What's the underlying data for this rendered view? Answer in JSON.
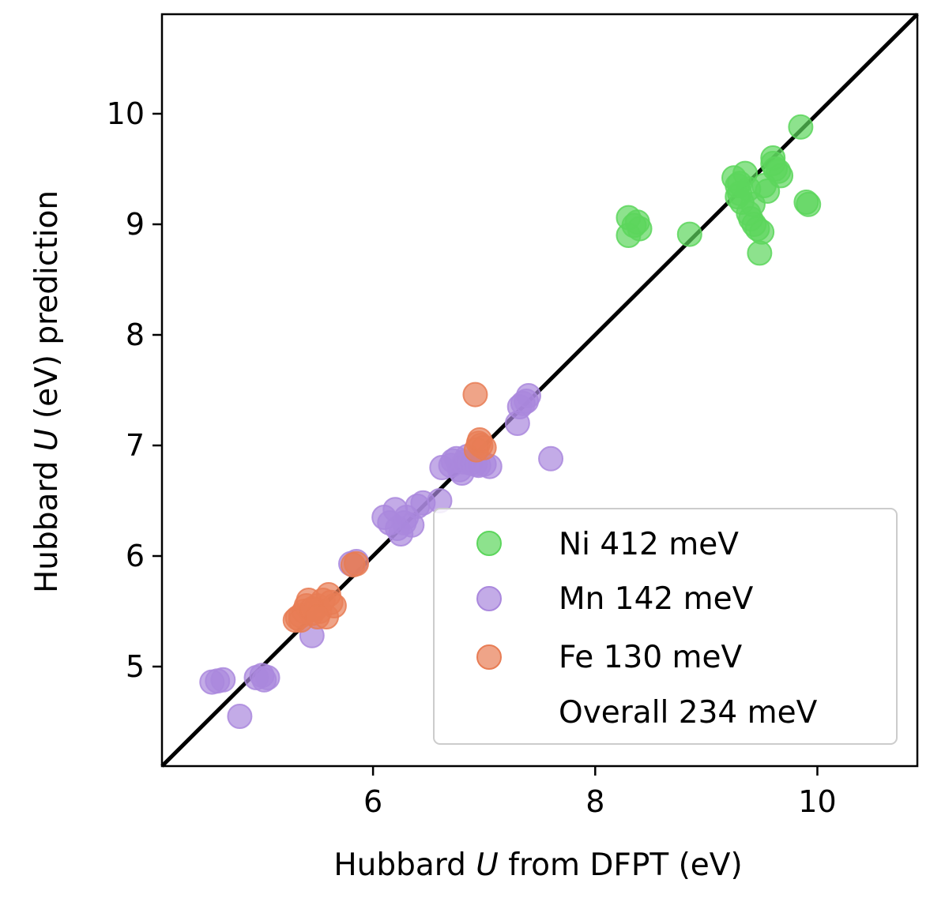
{
  "chart_data": {
    "type": "scatter",
    "title": "",
    "xlabel_parts": [
      "Hubbard ",
      "U",
      " from DFPT (eV)"
    ],
    "ylabel_parts": [
      "Hubbard ",
      "U",
      " (eV) prediction"
    ],
    "xlim": [
      4.1,
      10.9
    ],
    "ylim": [
      4.1,
      10.9
    ],
    "xticks": [
      6,
      8,
      10
    ],
    "yticks": [
      5,
      6,
      7,
      8,
      9,
      10
    ],
    "tick_labels_x": [
      "6",
      "8",
      "10"
    ],
    "tick_labels_y": [
      "5",
      "6",
      "7",
      "8",
      "9",
      "10"
    ],
    "reference_line": "y = x",
    "grid": false,
    "legend_position": "lower-right",
    "series": [
      {
        "name": "Ni 412 meV",
        "color": "#5cd65c",
        "points": [
          [
            8.3,
            9.06
          ],
          [
            8.38,
            9.02
          ],
          [
            8.4,
            8.96
          ],
          [
            8.3,
            8.9
          ],
          [
            8.35,
            8.99
          ],
          [
            8.85,
            8.91
          ],
          [
            9.25,
            9.42
          ],
          [
            9.28,
            9.35
          ],
          [
            9.3,
            9.28
          ],
          [
            9.35,
            9.46
          ],
          [
            9.32,
            9.2
          ],
          [
            9.38,
            9.1
          ],
          [
            9.4,
            9.05
          ],
          [
            9.43,
            9.0
          ],
          [
            9.46,
            8.96
          ],
          [
            9.5,
            8.93
          ],
          [
            9.52,
            9.35
          ],
          [
            9.55,
            9.3
          ],
          [
            9.6,
            9.55
          ],
          [
            9.62,
            9.5
          ],
          [
            9.65,
            9.48
          ],
          [
            9.67,
            9.44
          ],
          [
            9.6,
            9.6
          ],
          [
            9.48,
            8.74
          ],
          [
            9.85,
            9.88
          ],
          [
            9.9,
            9.2
          ],
          [
            9.92,
            9.18
          ],
          [
            9.38,
            9.32
          ],
          [
            9.42,
            9.18
          ],
          [
            9.3,
            9.37
          ],
          [
            9.28,
            9.25
          ]
        ]
      },
      {
        "name": "Mn 142 meV",
        "color": "#aa88dd",
        "points": [
          [
            4.55,
            4.86
          ],
          [
            4.6,
            4.87
          ],
          [
            4.65,
            4.88
          ],
          [
            4.8,
            4.55
          ],
          [
            4.95,
            4.9
          ],
          [
            5.0,
            4.92
          ],
          [
            5.02,
            4.88
          ],
          [
            5.05,
            4.9
          ],
          [
            5.45,
            5.28
          ],
          [
            5.8,
            5.93
          ],
          [
            5.85,
            5.95
          ],
          [
            6.1,
            6.35
          ],
          [
            6.15,
            6.3
          ],
          [
            6.2,
            6.42
          ],
          [
            6.22,
            6.25
          ],
          [
            6.25,
            6.2
          ],
          [
            6.28,
            6.3
          ],
          [
            6.3,
            6.35
          ],
          [
            6.35,
            6.28
          ],
          [
            6.4,
            6.45
          ],
          [
            6.45,
            6.48
          ],
          [
            6.6,
            6.5
          ],
          [
            6.62,
            6.8
          ],
          [
            6.7,
            6.82
          ],
          [
            6.72,
            6.86
          ],
          [
            6.75,
            6.88
          ],
          [
            6.78,
            6.78
          ],
          [
            6.8,
            6.75
          ],
          [
            6.82,
            6.85
          ],
          [
            6.85,
            6.9
          ],
          [
            6.88,
            6.84
          ],
          [
            6.92,
            6.83
          ],
          [
            6.95,
            6.82
          ],
          [
            7.0,
            6.83
          ],
          [
            7.05,
            6.81
          ],
          [
            7.3,
            7.2
          ],
          [
            7.32,
            7.35
          ],
          [
            7.35,
            7.38
          ],
          [
            7.38,
            7.4
          ],
          [
            7.4,
            7.45
          ],
          [
            7.6,
            6.88
          ]
        ]
      },
      {
        "name": "Fe 130 meV",
        "color": "#e87d55",
        "points": [
          [
            5.3,
            5.42
          ],
          [
            5.32,
            5.44
          ],
          [
            5.35,
            5.46
          ],
          [
            5.38,
            5.5
          ],
          [
            5.4,
            5.55
          ],
          [
            5.42,
            5.6
          ],
          [
            5.45,
            5.48
          ],
          [
            5.48,
            5.52
          ],
          [
            5.5,
            5.55
          ],
          [
            5.52,
            5.5
          ],
          [
            5.55,
            5.6
          ],
          [
            5.58,
            5.45
          ],
          [
            5.6,
            5.65
          ],
          [
            5.62,
            5.58
          ],
          [
            5.65,
            5.55
          ],
          [
            5.35,
            5.42
          ],
          [
            5.45,
            5.52
          ],
          [
            5.5,
            5.45
          ],
          [
            5.82,
            5.92
          ],
          [
            5.85,
            5.93
          ],
          [
            6.92,
            7.46
          ],
          [
            6.95,
            7.02
          ],
          [
            6.97,
            7.0
          ],
          [
            7.0,
            6.98
          ],
          [
            6.93,
            6.96
          ],
          [
            6.96,
            7.05
          ]
        ]
      }
    ],
    "legend_extra": "Overall 234 meV"
  }
}
